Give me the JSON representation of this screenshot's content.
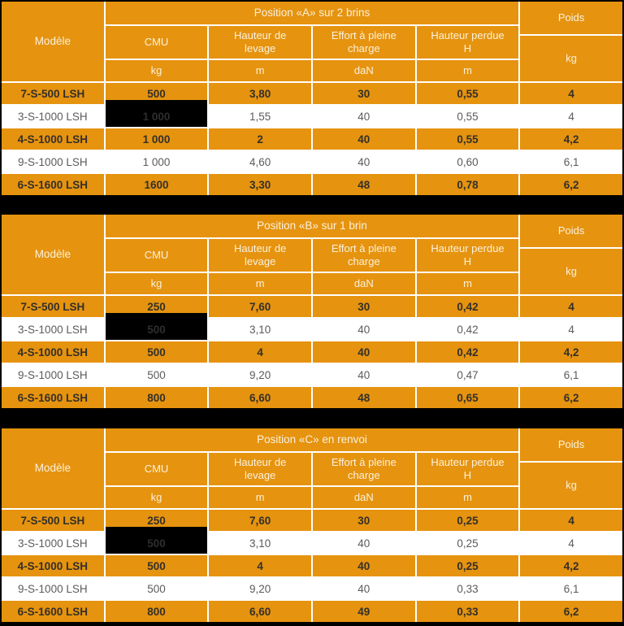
{
  "colors": {
    "orange": "#E6930F",
    "page_background": "#000000",
    "grid_lines": "#FFFFFF",
    "header_text": "#FAF1DC",
    "orange_row_text": "#33302A",
    "white_row_text": "#5A5B5D",
    "blackout_cell": "#000000"
  },
  "header": {
    "model": "Modèle",
    "cmu": "CMU",
    "hauteur": "Hauteur de levage",
    "effort": "Effort à pleine charge",
    "perdue": "Hauteur perdue H",
    "poids": "Poids",
    "unit_cmu": "kg",
    "unit_hauteur": "m",
    "unit_effort": "daN",
    "unit_perdue": "m",
    "unit_poids": "kg"
  },
  "tables": [
    {
      "title": "Position «A» sur 2 brins",
      "rows": [
        {
          "model": "7-S-500 LSH",
          "cmu": "500",
          "hauteur": "3,80",
          "effort": "30",
          "perdue": "0,55",
          "poids": "4"
        },
        {
          "model": "3-S-1000 LSH",
          "cmu": "1 000",
          "hauteur": "1,55",
          "effort": "40",
          "perdue": "0,55",
          "poids": "4",
          "cmu_blackout": true
        },
        {
          "model": "4-S-1000 LSH",
          "cmu": "1 000",
          "hauteur": "2",
          "effort": "40",
          "perdue": "0,55",
          "poids": "4,2"
        },
        {
          "model": "9-S-1000 LSH",
          "cmu": "1 000",
          "hauteur": "4,60",
          "effort": "40",
          "perdue": "0,60",
          "poids": "6,1"
        },
        {
          "model": "6-S-1600 LSH",
          "cmu": "1600",
          "hauteur": "3,30",
          "effort": "48",
          "perdue": "0,78",
          "poids": "6,2"
        }
      ]
    },
    {
      "title": "Position «B» sur 1 brin",
      "rows": [
        {
          "model": "7-S-500 LSH",
          "cmu": "250",
          "hauteur": "7,60",
          "effort": "30",
          "perdue": "0,42",
          "poids": "4"
        },
        {
          "model": "3-S-1000 LSH",
          "cmu": "500",
          "hauteur": "3,10",
          "effort": "40",
          "perdue": "0,42",
          "poids": "4",
          "cmu_blackout": true
        },
        {
          "model": "4-S-1000 LSH",
          "cmu": "500",
          "hauteur": "4",
          "effort": "40",
          "perdue": "0,42",
          "poids": "4,2"
        },
        {
          "model": "9-S-1000 LSH",
          "cmu": "500",
          "hauteur": "9,20",
          "effort": "40",
          "perdue": "0,47",
          "poids": "6,1"
        },
        {
          "model": "6-S-1600 LSH",
          "cmu": "800",
          "hauteur": "6,60",
          "effort": "48",
          "perdue": "0,65",
          "poids": "6,2"
        }
      ]
    },
    {
      "title": "Position «C» en renvoi",
      "rows": [
        {
          "model": "7-S-500 LSH",
          "cmu": "250",
          "hauteur": "7,60",
          "effort": "30",
          "perdue": "0,25",
          "poids": "4"
        },
        {
          "model": "3-S-1000 LSH",
          "cmu": "500",
          "hauteur": "3,10",
          "effort": "40",
          "perdue": "0,25",
          "poids": "4",
          "cmu_blackout": true
        },
        {
          "model": "4-S-1000 LSH",
          "cmu": "500",
          "hauteur": "4",
          "effort": "40",
          "perdue": "0,25",
          "poids": "4,2"
        },
        {
          "model": "9-S-1000 LSH",
          "cmu": "500",
          "hauteur": "9,20",
          "effort": "40",
          "perdue": "0,33",
          "poids": "6,1"
        },
        {
          "model": "6-S-1600 LSH",
          "cmu": "800",
          "hauteur": "6,60",
          "effort": "49",
          "perdue": "0,33",
          "poids": "6,2"
        }
      ]
    }
  ]
}
